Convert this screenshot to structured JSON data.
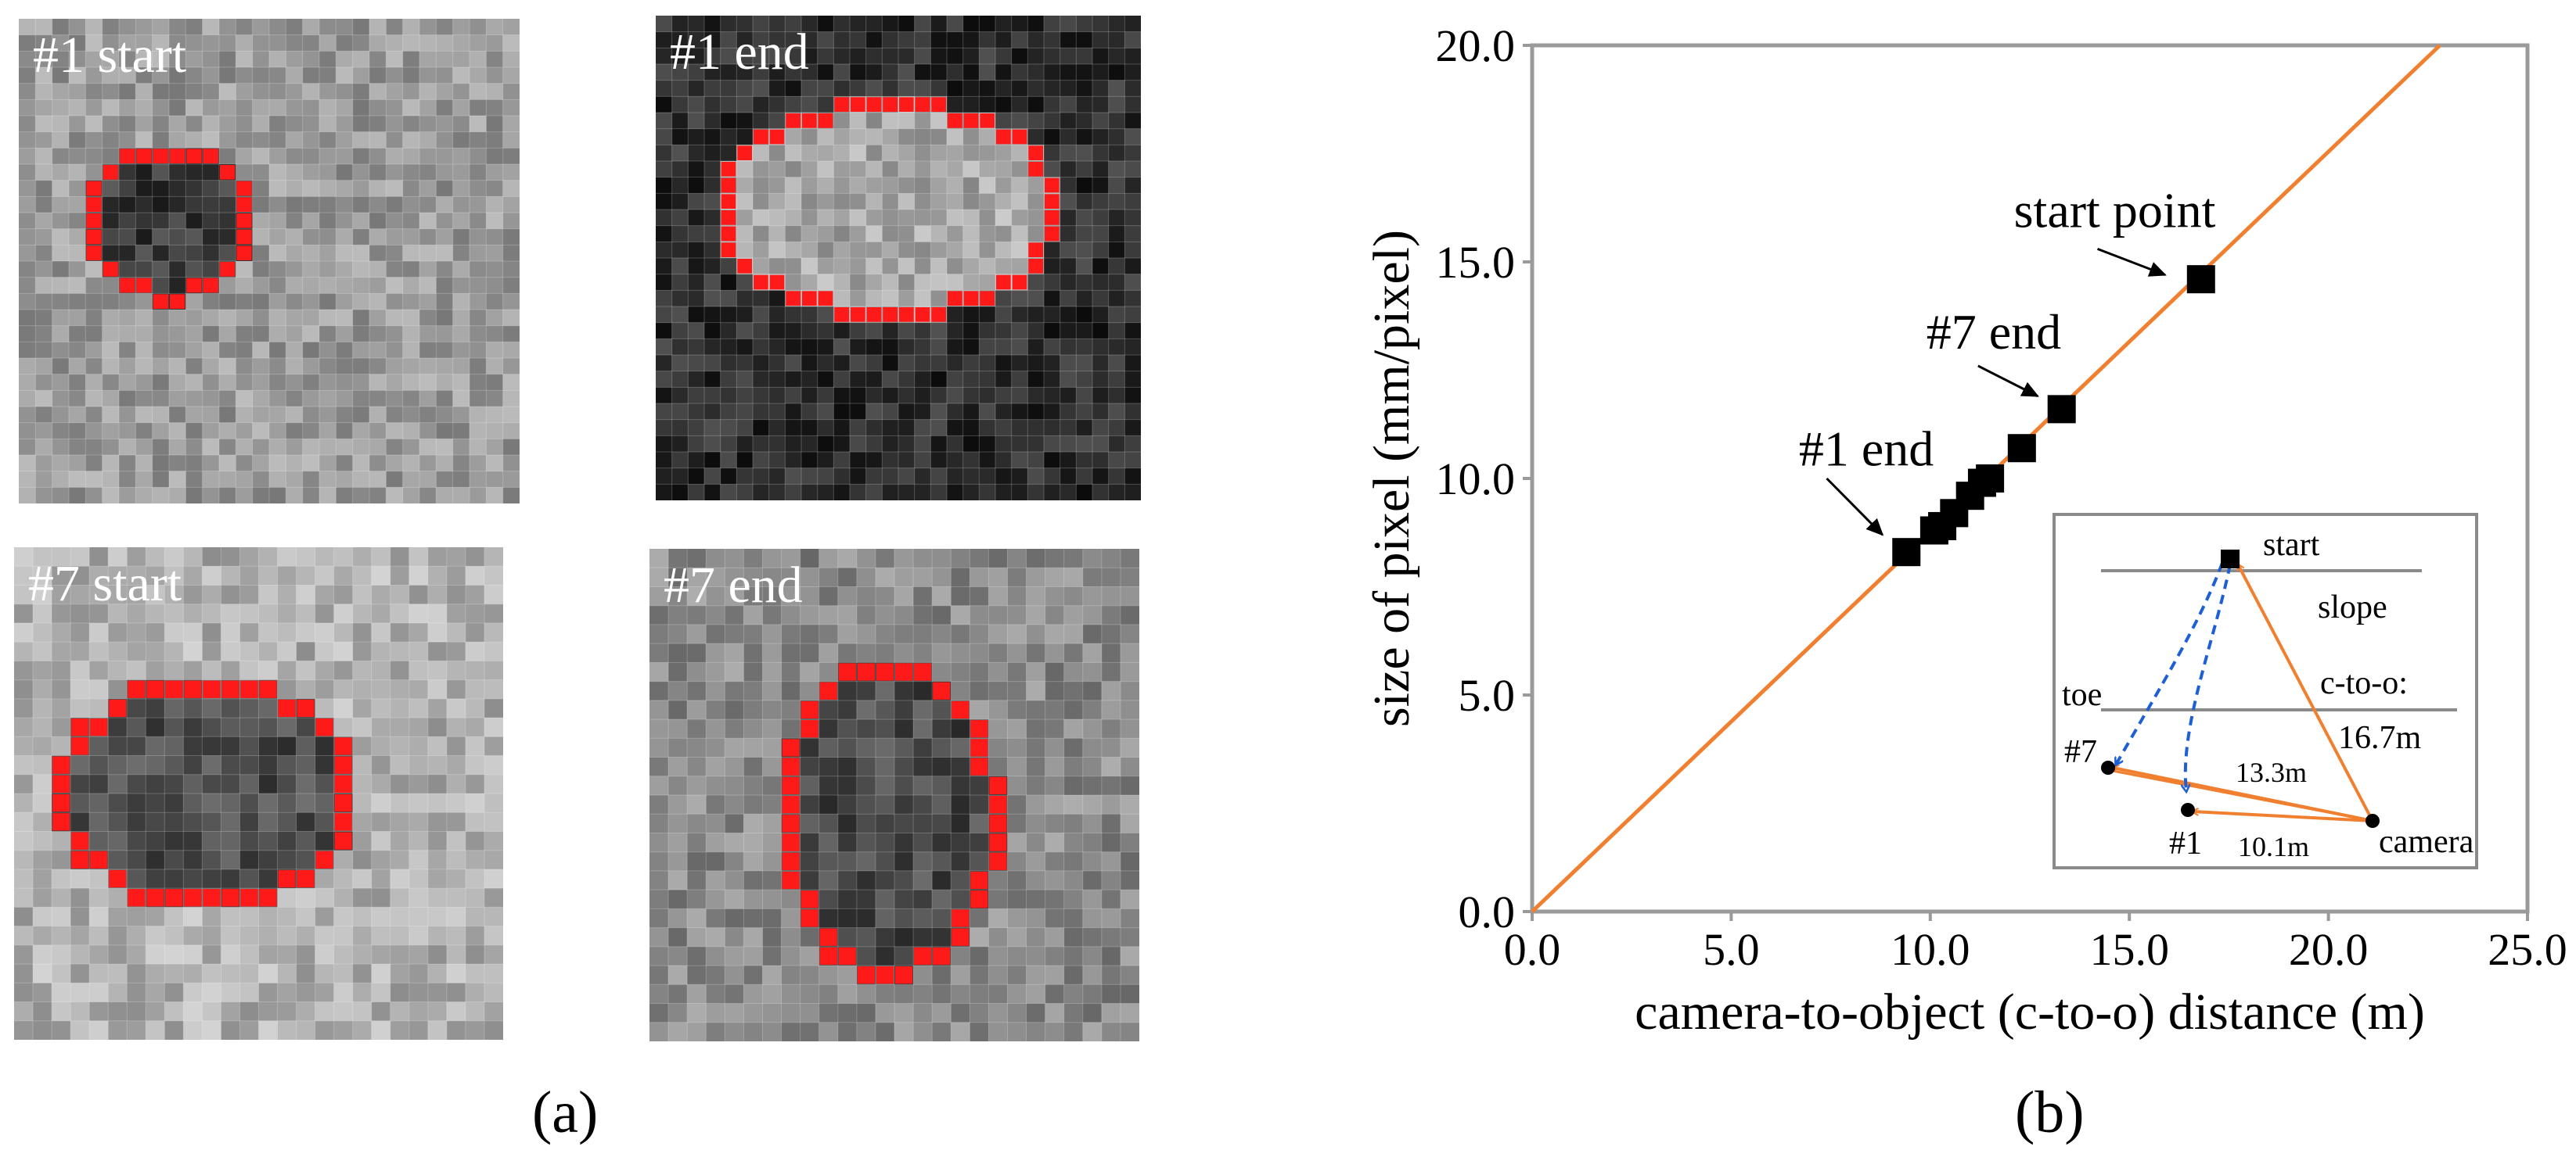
{
  "panel_a": {
    "caption": "(a)",
    "tiles": [
      {
        "label": "#1 start",
        "base": "#9a9a9a",
        "dark": "#3c3c3c",
        "grid": 30
      },
      {
        "label": "#1 end",
        "base": "#2e2e2e",
        "dark": "#a8a8a8",
        "grid": 30
      },
      {
        "label": "#7 start",
        "base": "#b0b0b0",
        "dark": "#4e4e4e",
        "grid": 26
      },
      {
        "label": "#7 end",
        "base": "#8a8a8a",
        "dark": "#4a4a4a",
        "grid": 26
      }
    ],
    "boundary_color": "#ff1a1a"
  },
  "chart_data": {
    "type": "scatter",
    "caption": "(b)",
    "xlabel": "camera-to-object (c-to-o) distance (m)",
    "ylabel": "size of pixel (mm/pixel)",
    "xlim": [
      0,
      25
    ],
    "ylim": [
      0,
      20
    ],
    "xticks": [
      "0.0",
      "5.0",
      "10.0",
      "15.0",
      "20.0",
      "25.0"
    ],
    "yticks": [
      "0.0",
      "5.0",
      "10.0",
      "15.0",
      "20.0"
    ],
    "grid": false,
    "line": {
      "x": [
        0,
        22.8
      ],
      "y": [
        0,
        20
      ],
      "color": "#f08030"
    },
    "marker_color": "#000000",
    "points": {
      "x": [
        9.4,
        10.1,
        10.3,
        10.6,
        11.0,
        11.3,
        11.5,
        12.3,
        13.3,
        16.8
      ],
      "y": [
        8.3,
        8.8,
        8.9,
        9.2,
        9.6,
        9.9,
        10.0,
        10.7,
        11.6,
        14.6
      ]
    },
    "annotations": [
      {
        "text": "start point",
        "x": 12.1,
        "y": 15.8,
        "ax": 14.2,
        "ay": 15.3,
        "bx": 15.9,
        "by": 14.7
      },
      {
        "text": "#7 end",
        "x": 9.9,
        "y": 13.0,
        "ax": 11.2,
        "ay": 12.6,
        "bx": 12.7,
        "by": 11.9
      },
      {
        "text": "#1 end",
        "x": 6.7,
        "y": 10.3,
        "ax": 7.4,
        "ay": 10.0,
        "bx": 8.8,
        "by": 8.7
      }
    ],
    "inset": {
      "labels": {
        "start": "start",
        "slope": "slope",
        "toe": "toe",
        "c2o": "c-to-o:",
        "c2o_val": "16.7m",
        "p7": "#7",
        "d7": "13.3m",
        "p1": "#1",
        "d1": "10.1m",
        "camera": "camera"
      },
      "arrow_color": "#f08030",
      "path_color": "#1f5fd6"
    }
  }
}
